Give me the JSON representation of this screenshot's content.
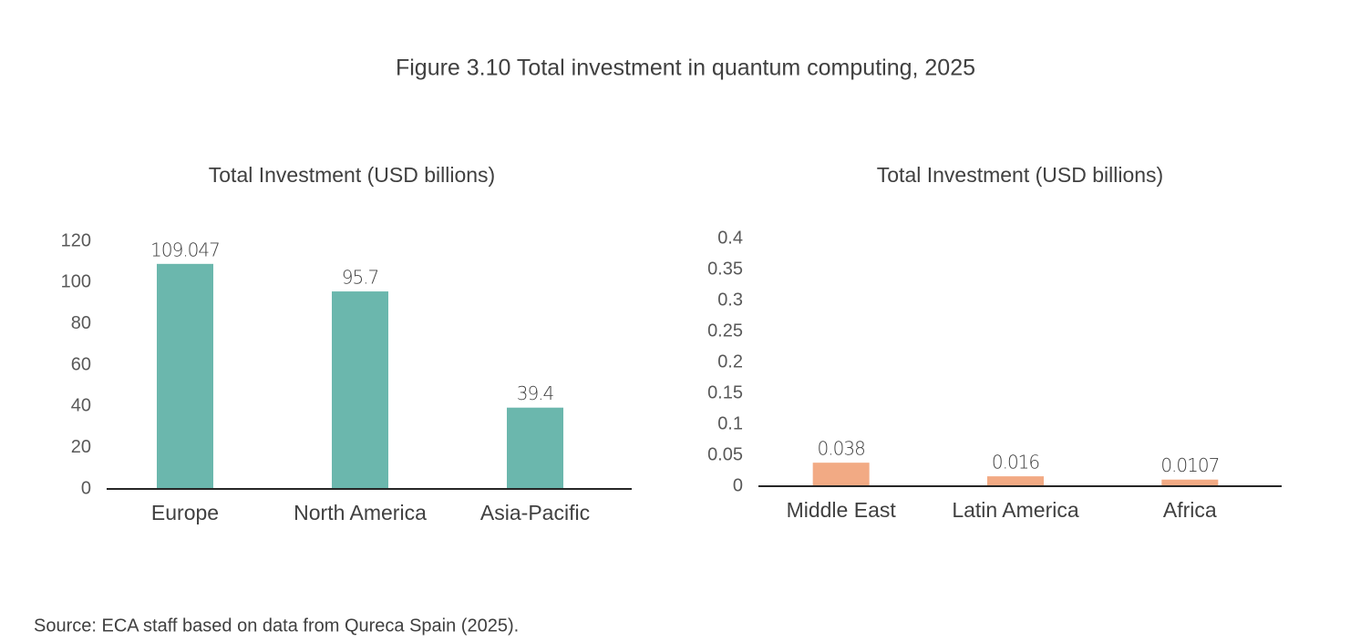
{
  "title": "Figure 3.10 Total investment in quantum computing, 2025",
  "chart_data": [
    {
      "type": "bar",
      "title": "Total Investment (USD billions)",
      "categories": [
        "Europe",
        "North America",
        "Asia-Pacific"
      ],
      "values": [
        109.047,
        95.7,
        39.4
      ],
      "color": "#6bb7ad",
      "label_color": "#6bb7ad",
      "ylim": [
        0,
        120
      ],
      "yticks": [
        0,
        20,
        40,
        60,
        80,
        100,
        120
      ],
      "grid": false
    },
    {
      "type": "bar",
      "title": "Total Investment (USD billions)",
      "categories": [
        "Middle East",
        "Latin America",
        "Africa"
      ],
      "values": [
        0.038,
        0.016,
        0.0107
      ],
      "color": "#f2aa84",
      "label_color": "#e9a23b",
      "ylim": [
        0,
        0.4
      ],
      "yticks": [
        0,
        0.05,
        0.1,
        0.15,
        0.2,
        0.25,
        0.3,
        0.35,
        0.4
      ],
      "grid": false
    }
  ],
  "source": "Source: ECA staff based on data from Qureca Spain (2025)."
}
